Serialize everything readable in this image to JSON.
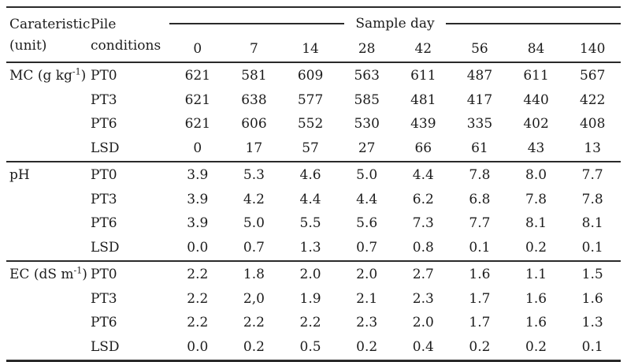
{
  "table": {
    "header": {
      "col1_line1": "Carateristic",
      "col1_line2": "(unit)",
      "col2_line1": "Pile",
      "col2_line2": "conditions",
      "spanner": "Sample day",
      "days": [
        "0",
        "7",
        "14",
        "28",
        "42",
        "56",
        "84",
        "140"
      ]
    },
    "sections": [
      {
        "label": {
          "pre": "MC (g kg",
          "sup": "-1",
          "post": ")"
        },
        "rows": [
          {
            "condition": "PT0",
            "values": [
              "621",
              "581",
              "609",
              "563",
              "611",
              "487",
              "611",
              "567"
            ]
          },
          {
            "condition": "PT3",
            "values": [
              "621",
              "638",
              "577",
              "585",
              "481",
              "417",
              "440",
              "422"
            ]
          },
          {
            "condition": "PT6",
            "values": [
              "621",
              "606",
              "552",
              "530",
              "439",
              "335",
              "402",
              "408"
            ]
          },
          {
            "condition": "LSD",
            "values": [
              "0",
              "17",
              "57",
              "27",
              "66",
              "61",
              "43",
              "13"
            ]
          }
        ]
      },
      {
        "label": {
          "pre": "pH",
          "sup": "",
          "post": ""
        },
        "rows": [
          {
            "condition": "PT0",
            "values": [
              "3.9",
              "5.3",
              "4.6",
              "5.0",
              "4.4",
              "7.8",
              "8.0",
              "7.7"
            ]
          },
          {
            "condition": "PT3",
            "values": [
              "3.9",
              "4.2",
              "4.4",
              "4.4",
              "6.2",
              "6.8",
              "7.8",
              "7.8"
            ]
          },
          {
            "condition": "PT6",
            "values": [
              "3.9",
              "5.0",
              "5.5",
              "5.6",
              "7.3",
              "7.7",
              "8.1",
              "8.1"
            ]
          },
          {
            "condition": "LSD",
            "values": [
              "0.0",
              "0.7",
              "1.3",
              "0.7",
              "0.8",
              "0.1",
              "0.2",
              "0.1"
            ]
          }
        ]
      },
      {
        "label": {
          "pre": "EC (dS m",
          "sup": "-1",
          "post": ")"
        },
        "rows": [
          {
            "condition": "PT0",
            "values": [
              "2.2",
              "1.8",
              "2.0",
              "2.0",
              "2.7",
              "1.6",
              "1.1",
              "1.5"
            ]
          },
          {
            "condition": "PT3",
            "values": [
              "2.2",
              "2,0",
              "1.9",
              "2.1",
              "2.3",
              "1.7",
              "1.6",
              "1.6"
            ]
          },
          {
            "condition": "PT6",
            "values": [
              "2.2",
              "2.2",
              "2.2",
              "2.3",
              "2.0",
              "1.7",
              "1.6",
              "1.3"
            ]
          },
          {
            "condition": "LSD",
            "values": [
              "0.0",
              "0.2",
              "0.5",
              "0.2",
              "0.4",
              "0.2",
              "0.2",
              "0.1"
            ]
          }
        ]
      }
    ]
  }
}
